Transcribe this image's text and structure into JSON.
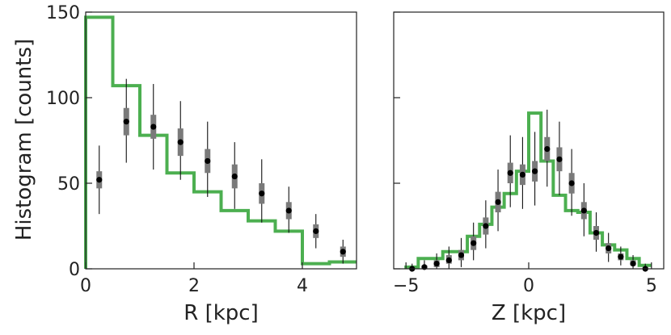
{
  "chart_data": {
    "type": "histogram",
    "shared_ylabel": "Histogram [counts]",
    "colors": {
      "model": "#4caf50",
      "data_points": "#000000",
      "error_inner": "#7a7a7a",
      "error_outer": "#111111"
    },
    "panels": [
      {
        "id": "R",
        "xlabel": "R [kpc]",
        "xlim": [
          0,
          5
        ],
        "ylim": [
          0,
          150
        ],
        "xticks": [
          0,
          2,
          4
        ],
        "yticks": [
          0,
          50,
          100,
          150
        ],
        "ytick_labels_visible": true,
        "model_step": {
          "edges": [
            0,
            0.5,
            1.0,
            1.5,
            2.0,
            2.5,
            3.0,
            3.5,
            4.0,
            4.5,
            5.0
          ],
          "values": [
            147,
            107,
            78,
            56,
            45,
            34,
            28,
            22,
            3,
            4
          ]
        },
        "points": [
          {
            "x": 0.25,
            "y": 52,
            "inner": [
              47,
              57
            ],
            "outer": [
              32,
              72
            ]
          },
          {
            "x": 0.75,
            "y": 86,
            "inner": [
              78,
              94
            ],
            "outer": [
              62,
              111
            ]
          },
          {
            "x": 1.25,
            "y": 83,
            "inner": [
              76,
              90
            ],
            "outer": [
              58,
              108
            ]
          },
          {
            "x": 1.75,
            "y": 74,
            "inner": [
              66,
              82
            ],
            "outer": [
              52,
              98
            ]
          },
          {
            "x": 2.25,
            "y": 63,
            "inner": [
              56,
              70
            ],
            "outer": [
              42,
              86
            ]
          },
          {
            "x": 2.75,
            "y": 54,
            "inner": [
              47,
              61
            ],
            "outer": [
              35,
              74
            ]
          },
          {
            "x": 3.25,
            "y": 44,
            "inner": [
              38,
              50
            ],
            "outer": [
              27,
              64
            ]
          },
          {
            "x": 3.75,
            "y": 34,
            "inner": [
              29,
              39
            ],
            "outer": [
              21,
              48
            ]
          },
          {
            "x": 4.25,
            "y": 22,
            "inner": [
              18,
              26
            ],
            "outer": [
              12,
              32
            ]
          },
          {
            "x": 4.75,
            "y": 10,
            "inner": [
              7,
              13
            ],
            "outer": [
              3,
              17
            ]
          }
        ]
      },
      {
        "id": "Z",
        "xlabel": "Z [kpc]",
        "xlim": [
          -5.5,
          5.5
        ],
        "ylim": [
          0,
          150
        ],
        "xticks": [
          -5,
          0,
          5
        ],
        "yticks": [
          0,
          50,
          100,
          150
        ],
        "ytick_labels_visible": false,
        "model_step": {
          "edges": [
            -5.0,
            -4.5,
            -4.0,
            -3.5,
            -3.0,
            -2.5,
            -2.0,
            -1.5,
            -1.0,
            -0.5,
            0.0,
            0.5,
            1.0,
            1.5,
            2.0,
            2.5,
            3.0,
            3.5,
            4.0,
            4.5,
            5.0
          ],
          "values": [
            1,
            6,
            6,
            10,
            10,
            19,
            26,
            36,
            44,
            57,
            91,
            63,
            43,
            34,
            33,
            21,
            14,
            11,
            6,
            2
          ]
        },
        "points": [
          {
            "x": -4.75,
            "y": 0,
            "inner": [
              0,
              1
            ],
            "outer": [
              0,
              3
            ]
          },
          {
            "x": -4.25,
            "y": 1,
            "inner": [
              0,
              2
            ],
            "outer": [
              0,
              5
            ]
          },
          {
            "x": -3.75,
            "y": 3,
            "inner": [
              1,
              5
            ],
            "outer": [
              0,
              9
            ]
          },
          {
            "x": -3.25,
            "y": 5,
            "inner": [
              3,
              8
            ],
            "outer": [
              0,
              13
            ]
          },
          {
            "x": -2.75,
            "y": 8,
            "inner": [
              5,
              11
            ],
            "outer": [
              1,
              18
            ]
          },
          {
            "x": -2.25,
            "y": 15,
            "inner": [
              11,
              19
            ],
            "outer": [
              5,
              27
            ]
          },
          {
            "x": -1.75,
            "y": 25,
            "inner": [
              20,
              30
            ],
            "outer": [
              12,
              40
            ]
          },
          {
            "x": -1.25,
            "y": 39,
            "inner": [
              33,
              45
            ],
            "outer": [
              22,
              58
            ]
          },
          {
            "x": -0.75,
            "y": 56,
            "inner": [
              50,
              62
            ],
            "outer": [
              36,
              78
            ]
          },
          {
            "x": -0.25,
            "y": 55,
            "inner": [
              49,
              61
            ],
            "outer": [
              35,
              77
            ]
          },
          {
            "x": 0.25,
            "y": 57,
            "inner": [
              51,
              63
            ],
            "outer": [
              37,
              80
            ]
          },
          {
            "x": 0.75,
            "y": 70,
            "inner": [
              63,
              77
            ],
            "outer": [
              48,
              93
            ]
          },
          {
            "x": 1.25,
            "y": 64,
            "inner": [
              57,
              71
            ],
            "outer": [
              43,
              86
            ]
          },
          {
            "x": 1.75,
            "y": 50,
            "inner": [
              44,
              56
            ],
            "outer": [
              31,
              70
            ]
          },
          {
            "x": 2.25,
            "y": 34,
            "inner": [
              29,
              39
            ],
            "outer": [
              19,
              50
            ]
          },
          {
            "x": 2.75,
            "y": 21,
            "inner": [
              17,
              25
            ],
            "outer": [
              10,
              33
            ]
          },
          {
            "x": 3.25,
            "y": 12,
            "inner": [
              9,
              15
            ],
            "outer": [
              4,
              21
            ]
          },
          {
            "x": 3.75,
            "y": 7,
            "inner": [
              5,
              9
            ],
            "outer": [
              2,
              13
            ]
          },
          {
            "x": 4.25,
            "y": 3,
            "inner": [
              2,
              5
            ],
            "outer": [
              0,
              8
            ]
          },
          {
            "x": 4.75,
            "y": 0,
            "inner": [
              0,
              1
            ],
            "outer": [
              0,
              3
            ]
          }
        ]
      }
    ]
  }
}
